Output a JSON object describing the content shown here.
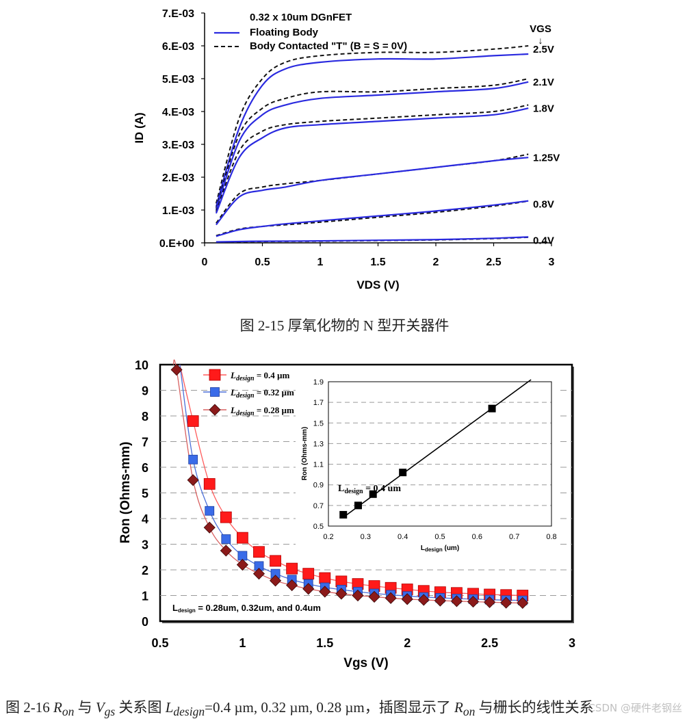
{
  "chart_data": [
    {
      "type": "line",
      "title": "0.32 x 10um DGnFET",
      "xlabel": "VDS (V)",
      "ylabel": "ID (A)",
      "xlim": [
        0,
        3
      ],
      "ylim": [
        0,
        0.007
      ],
      "xticks": [
        "0",
        "0.5",
        "1",
        "1.5",
        "2",
        "2.5",
        "3"
      ],
      "yticks": [
        "0.E+00",
        "1.E-03",
        "2.E-03",
        "3.E-03",
        "4.E-03",
        "5.E-03",
        "6.E-03",
        "7.E-03"
      ],
      "legend": [
        "Floating Body",
        "Body Contacted \"T\" (B = S = 0V)"
      ],
      "legend_position": "top-left",
      "vgs_header": "VGS",
      "vgs_arrow": "↓",
      "series": [
        {
          "label": "2.5V",
          "x": [
            0.1,
            0.3,
            0.5,
            0.7,
            1.0,
            1.5,
            2.0,
            2.5,
            2.8
          ],
          "floating": [
            0.0011,
            0.0035,
            0.0048,
            0.0053,
            0.0055,
            0.0056,
            0.0056,
            0.0057,
            0.00575
          ],
          "contacted": [
            0.0012,
            0.0038,
            0.005,
            0.0055,
            0.0057,
            0.0058,
            0.0058,
            0.0059,
            0.006
          ]
        },
        {
          "label": "2.1V",
          "x": [
            0.1,
            0.3,
            0.5,
            0.7,
            1.0,
            1.5,
            2.0,
            2.5,
            2.8
          ],
          "floating": [
            0.001,
            0.0031,
            0.0039,
            0.0042,
            0.0044,
            0.0045,
            0.0046,
            0.0047,
            0.0049
          ],
          "contacted": [
            0.00105,
            0.0033,
            0.0041,
            0.0044,
            0.0046,
            0.0046,
            0.0047,
            0.0048,
            0.005
          ]
        },
        {
          "label": "1.8V",
          "x": [
            0.1,
            0.3,
            0.5,
            0.7,
            1.0,
            1.5,
            2.0,
            2.5,
            2.8
          ],
          "floating": [
            0.0009,
            0.0026,
            0.0032,
            0.0035,
            0.0036,
            0.0037,
            0.0038,
            0.0039,
            0.0041
          ],
          "contacted": [
            0.00095,
            0.0028,
            0.0034,
            0.0036,
            0.0037,
            0.0038,
            0.0039,
            0.004,
            0.0042
          ]
        },
        {
          "label": "1.25V",
          "x": [
            0.1,
            0.3,
            0.5,
            0.7,
            1.0,
            1.5,
            2.0,
            2.5,
            2.8
          ],
          "floating": [
            0.00055,
            0.0014,
            0.0016,
            0.0017,
            0.0019,
            0.0021,
            0.0023,
            0.0025,
            0.0026
          ],
          "contacted": [
            0.0006,
            0.0015,
            0.0017,
            0.0018,
            0.0019,
            0.0021,
            0.0023,
            0.0025,
            0.0027
          ]
        },
        {
          "label": "0.8V",
          "x": [
            0.1,
            0.3,
            0.5,
            0.7,
            1.0,
            1.5,
            2.0,
            2.5,
            2.8
          ],
          "floating": [
            0.0002,
            0.0004,
            0.0005,
            0.00058,
            0.00067,
            0.00082,
            0.00097,
            0.00115,
            0.00128
          ],
          "contacted": [
            0.00022,
            0.00042,
            0.0005,
            0.00055,
            0.00063,
            0.00078,
            0.00093,
            0.00112,
            0.00127
          ]
        },
        {
          "label": "0.4V",
          "x": [
            0.1,
            0.5,
            1.0,
            1.5,
            2.0,
            2.5,
            2.8
          ],
          "floating": [
            3e-05,
            5e-05,
            6e-05,
            8e-05,
            0.0001,
            0.00014,
            0.00018
          ],
          "contacted": [
            2e-05,
            4e-05,
            5e-05,
            7e-05,
            9e-05,
            0.00013,
            0.00017
          ]
        }
      ]
    },
    {
      "type": "scatter",
      "xlabel": "Vgs  (V)",
      "ylabel": "Ron (Ohms-mm)",
      "xlim": [
        0.5,
        3
      ],
      "ylim": [
        0,
        10
      ],
      "xticks": [
        "0.5",
        "1",
        "1.5",
        "2",
        "2.5",
        "3"
      ],
      "yticks": [
        "0",
        "1",
        "2",
        "3",
        "4",
        "5",
        "6",
        "7",
        "8",
        "9",
        "10"
      ],
      "annotation": "= 0.28um, 0.32um, and 0.4um",
      "x": [
        0.6,
        0.7,
        0.8,
        0.9,
        1.0,
        1.1,
        1.2,
        1.3,
        1.4,
        1.5,
        1.6,
        1.7,
        1.8,
        1.9,
        2.0,
        2.1,
        2.2,
        2.3,
        2.4,
        2.5,
        2.6,
        2.7
      ],
      "series": [
        {
          "name": "= 0.4 µm",
          "design_value": "0.4",
          "values": [
            null,
            7.8,
            5.35,
            4.05,
            3.25,
            2.7,
            2.35,
            2.05,
            1.85,
            1.68,
            1.55,
            1.45,
            1.37,
            1.3,
            1.24,
            1.18,
            1.13,
            1.1,
            1.07,
            1.04,
            1.02,
            1.0
          ]
        },
        {
          "name": "= 0.32 µm",
          "design_value": "0.32",
          "values": [
            null,
            6.3,
            4.3,
            3.2,
            2.55,
            2.15,
            1.85,
            1.62,
            1.45,
            1.32,
            1.23,
            1.15,
            1.08,
            1.03,
            0.98,
            0.94,
            0.91,
            0.88,
            0.86,
            0.84,
            0.82,
            0.81
          ]
        },
        {
          "name": "= 0.28 µm",
          "design_value": "0.28",
          "values": [
            9.8,
            5.5,
            3.65,
            2.75,
            2.2,
            1.85,
            1.58,
            1.4,
            1.26,
            1.15,
            1.07,
            1.0,
            0.95,
            0.9,
            0.86,
            0.83,
            0.8,
            0.78,
            0.76,
            0.74,
            0.72,
            0.71
          ]
        }
      ],
      "inset": {
        "type": "scatter",
        "xlabel": "(um)",
        "ylabel": "Ron (Ohms-mm)",
        "xlim": [
          0.2,
          0.8
        ],
        "ylim": [
          0.5,
          1.9
        ],
        "xticks": [
          "0.2",
          "0.3",
          "0.4",
          "0.5",
          "0.6",
          "0.7",
          "0.8"
        ],
        "yticks": [
          "0.5",
          "0.7",
          "0.9",
          "1.1",
          "1.3",
          "1.5",
          "1.7",
          "1.9"
        ],
        "label": "= 0.4 um",
        "x": [
          0.24,
          0.28,
          0.32,
          0.4,
          0.64
        ],
        "values": [
          0.61,
          0.7,
          0.81,
          1.02,
          1.64
        ],
        "fit_line": {
          "x": [
            0.24,
            0.745
          ],
          "y": [
            0.585,
            1.92
          ]
        }
      }
    }
  ],
  "captions": {
    "fig15": "图 2-15  厚氧化物的 N 型开关器件",
    "fig16_prefix": "图 2-16 ",
    "ron_R": "R",
    "ron_sub": "on",
    "with": " 与 ",
    "vgs_V": "V",
    "vgs_sub": "gs",
    "mid": " 关系图  ",
    "ld_L": "L",
    "ld_sub": "design",
    "values": "=0.4 µm, 0.32 µm, 0.28 µm，插图显示了 ",
    "tail": " 与栅长的线性关系",
    "watermark": "CSDN @硬件老钢丝"
  },
  "colors": {
    "floating": "#2a2adf",
    "contacted": "#111111",
    "red": "#ff1a1a",
    "blue": "#3a6be8",
    "maroon": "#8b1a1a"
  }
}
